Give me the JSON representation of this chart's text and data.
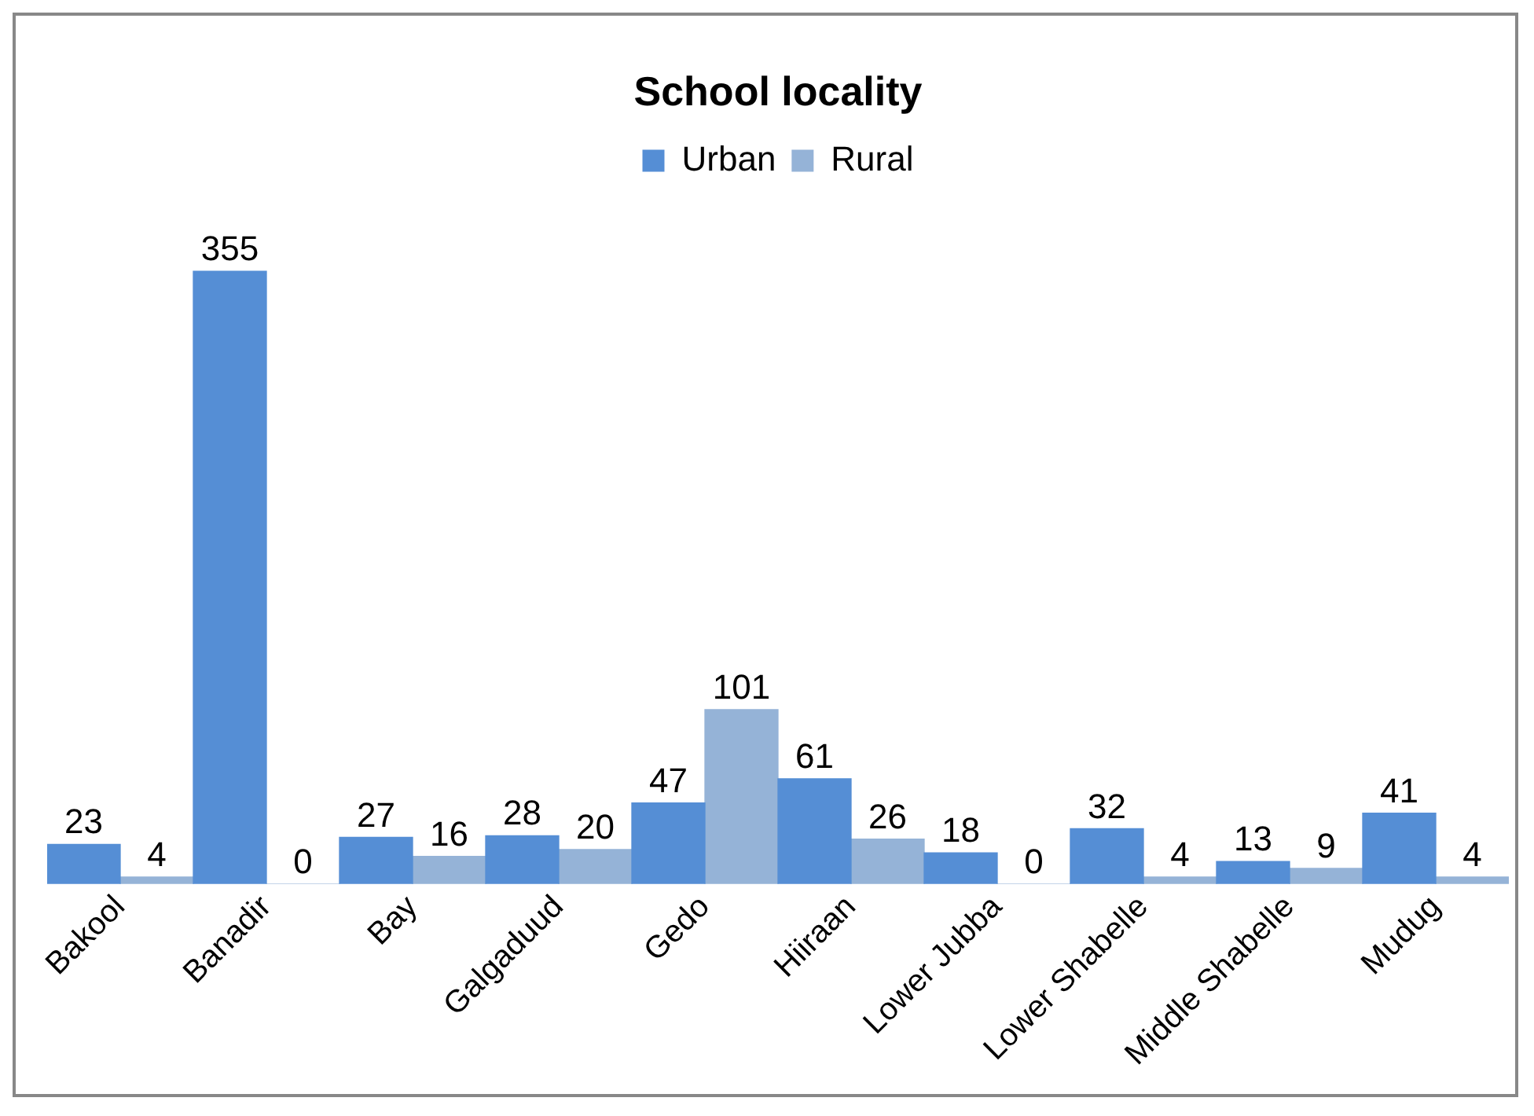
{
  "chart_data": {
    "type": "bar",
    "title": "School locality",
    "categories": [
      "Bakool",
      "Banadir",
      "Bay",
      "Galgaduud",
      "Gedo",
      "Hiiraan",
      "Lower Jubba",
      "Lower Shabelle",
      "Middle Shabelle",
      "Mudug"
    ],
    "series": [
      {
        "name": "Urban",
        "color": "#558ed5",
        "values": [
          23,
          355,
          27,
          28,
          47,
          61,
          18,
          32,
          13,
          41
        ]
      },
      {
        "name": "Rural",
        "color": "#95b3d7",
        "values": [
          4,
          0,
          16,
          20,
          101,
          26,
          0,
          4,
          9,
          4
        ]
      }
    ],
    "data_labels": true,
    "legend": "top",
    "grid": false
  }
}
